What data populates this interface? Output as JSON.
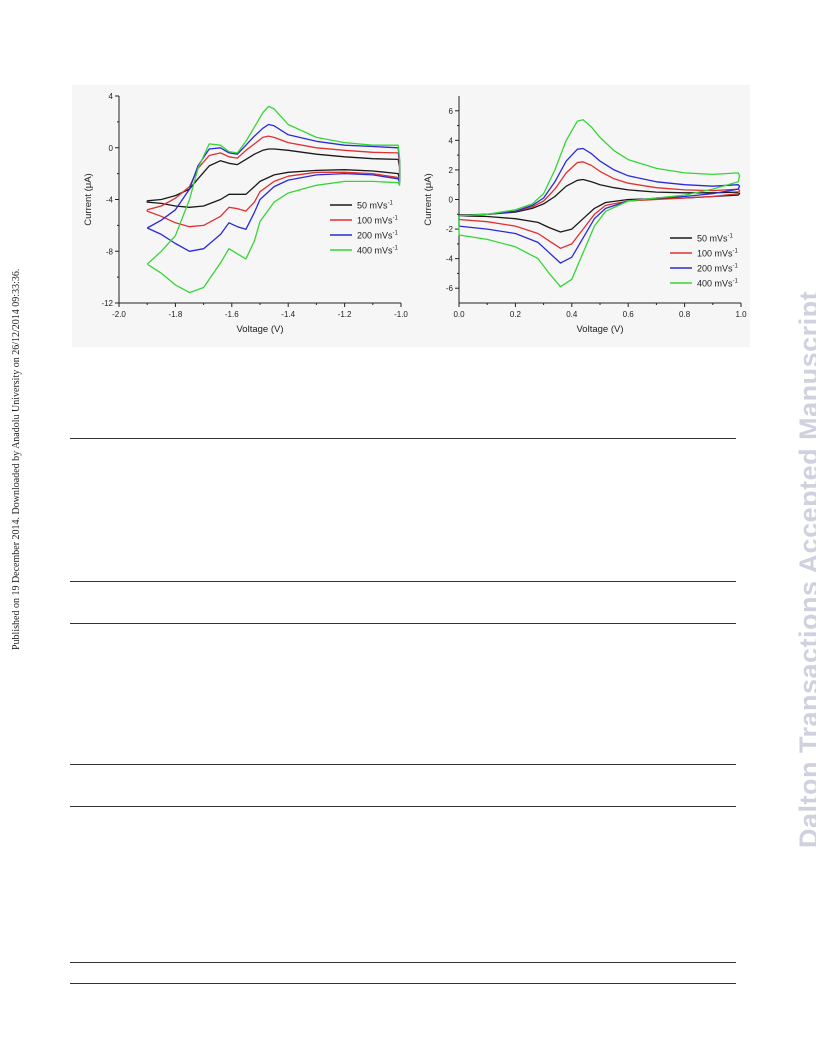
{
  "page": {
    "side_note": "Published on 19 December 2014. Downloaded by Anadolu University on 26/12/2014 09:33:36.",
    "watermark": "Dalton Transactions Accepted Manuscript"
  },
  "chart_data": [
    {
      "type": "line",
      "xlabel": "Voltage (V)",
      "ylabel": "Current (μA)",
      "xlim": [
        -2.0,
        -1.0
      ],
      "ylim": [
        -12,
        4
      ],
      "xticks": [
        -2.0,
        -1.8,
        -1.6,
        -1.4,
        -1.2,
        -1.0
      ],
      "xtick_labels": [
        "-2.0",
        "-1.8",
        "-1.6",
        "-1.4",
        "-1.2",
        "-1.0"
      ],
      "yticks": [
        -12,
        -8,
        -4,
        0,
        4
      ],
      "ytick_labels": [
        "-12",
        "-8",
        "-4",
        "0",
        "4"
      ],
      "legend_position": "bottom-right",
      "series": [
        {
          "name": "50 mVs",
          "sup": "-1",
          "color": "#1a1a1a",
          "x": [
            -1.9,
            -1.85,
            -1.8,
            -1.75,
            -1.72,
            -1.68,
            -1.64,
            -1.61,
            -1.58,
            -1.55,
            -1.52,
            -1.49,
            -1.47,
            -1.45,
            -1.4,
            -1.3,
            -1.2,
            -1.1,
            -1.01,
            -1.005,
            -1.005,
            -1.01,
            -1.1,
            -1.2,
            -1.3,
            -1.4,
            -1.45,
            -1.5,
            -1.52,
            -1.55,
            -1.58,
            -1.61,
            -1.64,
            -1.7,
            -1.75,
            -1.8,
            -1.85,
            -1.9
          ],
          "y": [
            -4.1,
            -4.0,
            -3.7,
            -3.2,
            -2.4,
            -1.4,
            -1.0,
            -1.2,
            -1.3,
            -0.9,
            -0.5,
            -0.2,
            -0.1,
            -0.1,
            -0.2,
            -0.5,
            -0.7,
            -0.85,
            -0.9,
            -1.5,
            -2.5,
            -2.0,
            -1.8,
            -1.7,
            -1.75,
            -1.9,
            -2.1,
            -2.6,
            -3.0,
            -3.6,
            -3.6,
            -3.6,
            -4.0,
            -4.5,
            -4.6,
            -4.5,
            -4.3,
            -4.2
          ]
        },
        {
          "name": "100 mVs",
          "sup": "-1",
          "color": "#e03030",
          "x": [
            -1.9,
            -1.85,
            -1.8,
            -1.75,
            -1.72,
            -1.68,
            -1.64,
            -1.61,
            -1.58,
            -1.55,
            -1.52,
            -1.49,
            -1.47,
            -1.45,
            -1.4,
            -1.3,
            -1.2,
            -1.1,
            -1.01,
            -1.005,
            -1.005,
            -1.01,
            -1.1,
            -1.2,
            -1.3,
            -1.4,
            -1.45,
            -1.5,
            -1.52,
            -1.55,
            -1.58,
            -1.61,
            -1.64,
            -1.7,
            -1.75,
            -1.8,
            -1.85,
            -1.9
          ],
          "y": [
            -4.8,
            -4.5,
            -3.9,
            -3.0,
            -1.6,
            -0.6,
            -0.4,
            -0.7,
            -0.8,
            -0.2,
            0.3,
            0.8,
            0.9,
            0.8,
            0.4,
            0.0,
            -0.2,
            -0.35,
            -0.4,
            -1.2,
            -2.6,
            -2.3,
            -2.0,
            -1.9,
            -1.9,
            -2.2,
            -2.6,
            -3.4,
            -4.2,
            -4.9,
            -4.7,
            -4.6,
            -5.3,
            -6.0,
            -6.1,
            -5.8,
            -5.3,
            -4.9
          ]
        },
        {
          "name": "200 mVs",
          "sup": "-1",
          "color": "#2a2ad8",
          "x": [
            -1.9,
            -1.85,
            -1.8,
            -1.75,
            -1.72,
            -1.68,
            -1.64,
            -1.61,
            -1.58,
            -1.55,
            -1.52,
            -1.49,
            -1.47,
            -1.45,
            -1.4,
            -1.3,
            -1.2,
            -1.1,
            -1.01,
            -1.005,
            -1.005,
            -1.01,
            -1.1,
            -1.2,
            -1.3,
            -1.4,
            -1.45,
            -1.5,
            -1.52,
            -1.55,
            -1.58,
            -1.61,
            -1.64,
            -1.7,
            -1.75,
            -1.8,
            -1.85,
            -1.9
          ],
          "y": [
            -6.2,
            -5.6,
            -4.8,
            -3.2,
            -1.4,
            -0.1,
            0.0,
            -0.4,
            -0.5,
            0.2,
            0.9,
            1.5,
            1.8,
            1.7,
            1.0,
            0.5,
            0.2,
            0.1,
            0.0,
            -1.0,
            -2.7,
            -2.4,
            -2.1,
            -2.0,
            -2.1,
            -2.5,
            -3.0,
            -4.0,
            -5.0,
            -6.3,
            -6.1,
            -5.8,
            -6.7,
            -7.8,
            -8.0,
            -7.4,
            -6.7,
            -6.2
          ]
        },
        {
          "name": "400 mVs",
          "sup": "-1",
          "color": "#35d635",
          "x": [
            -1.9,
            -1.85,
            -1.8,
            -1.75,
            -1.72,
            -1.68,
            -1.64,
            -1.61,
            -1.58,
            -1.55,
            -1.52,
            -1.49,
            -1.47,
            -1.45,
            -1.4,
            -1.3,
            -1.2,
            -1.1,
            -1.01,
            -1.005,
            -1.005,
            -1.01,
            -1.1,
            -1.2,
            -1.3,
            -1.4,
            -1.45,
            -1.5,
            -1.52,
            -1.55,
            -1.58,
            -1.61,
            -1.64,
            -1.7,
            -1.75,
            -1.8,
            -1.85,
            -1.9
          ],
          "y": [
            -9.0,
            -8.0,
            -6.8,
            -4.0,
            -1.6,
            0.3,
            0.2,
            -0.3,
            -0.4,
            0.5,
            1.6,
            2.7,
            3.2,
            3.0,
            1.8,
            0.8,
            0.4,
            0.2,
            0.2,
            -0.8,
            -2.9,
            -2.7,
            -2.6,
            -2.6,
            -2.9,
            -3.5,
            -4.2,
            -5.7,
            -7.2,
            -8.6,
            -8.2,
            -7.8,
            -8.9,
            -10.8,
            -11.2,
            -10.6,
            -9.7,
            -9.0
          ]
        }
      ]
    },
    {
      "type": "line",
      "xlabel": "Voltage (V)",
      "ylabel": "Current (μA)",
      "xlim": [
        0.0,
        1.0
      ],
      "ylim": [
        -7,
        7
      ],
      "xticks": [
        0.0,
        0.2,
        0.4,
        0.6,
        0.8,
        1.0
      ],
      "xtick_labels": [
        "0.0",
        "0.2",
        "0.4",
        "0.6",
        "0.8",
        "1.0"
      ],
      "yticks": [
        -6,
        -4,
        -2,
        0,
        2,
        4,
        6
      ],
      "ytick_labels": [
        "-6",
        "-4",
        "-2",
        "0",
        "2",
        "4",
        "6"
      ],
      "legend_position": "bottom-right",
      "series": [
        {
          "name": "50 mVs",
          "sup": "-1",
          "color": "#1a1a1a",
          "x": [
            0.0,
            0.1,
            0.2,
            0.26,
            0.3,
            0.34,
            0.38,
            0.42,
            0.44,
            0.47,
            0.5,
            0.55,
            0.6,
            0.7,
            0.8,
            0.9,
            0.99,
            0.995,
            0.99,
            0.9,
            0.8,
            0.7,
            0.6,
            0.52,
            0.48,
            0.44,
            0.4,
            0.36,
            0.32,
            0.28,
            0.2,
            0.1,
            0.0
          ],
          "y": [
            -1.05,
            -1.0,
            -0.85,
            -0.6,
            -0.3,
            0.2,
            0.9,
            1.3,
            1.35,
            1.2,
            1.0,
            0.8,
            0.65,
            0.5,
            0.45,
            0.45,
            0.5,
            0.4,
            0.3,
            0.2,
            0.1,
            0.05,
            0.0,
            -0.2,
            -0.6,
            -1.3,
            -2.0,
            -2.2,
            -1.9,
            -1.55,
            -1.3,
            -1.15,
            -1.1
          ]
        },
        {
          "name": "100 mVs",
          "sup": "-1",
          "color": "#e03030",
          "x": [
            0.0,
            0.1,
            0.2,
            0.26,
            0.3,
            0.34,
            0.38,
            0.42,
            0.44,
            0.47,
            0.5,
            0.55,
            0.6,
            0.7,
            0.8,
            0.9,
            0.99,
            0.995,
            0.99,
            0.9,
            0.8,
            0.7,
            0.6,
            0.52,
            0.48,
            0.44,
            0.4,
            0.36,
            0.32,
            0.28,
            0.2,
            0.1,
            0.0
          ],
          "y": [
            -1.1,
            -1.0,
            -0.8,
            -0.5,
            -0.1,
            0.7,
            1.8,
            2.5,
            2.55,
            2.3,
            1.9,
            1.4,
            1.1,
            0.8,
            0.65,
            0.6,
            0.7,
            0.6,
            0.4,
            0.2,
            0.1,
            0.0,
            -0.1,
            -0.4,
            -1.0,
            -2.0,
            -3.0,
            -3.3,
            -2.8,
            -2.3,
            -1.8,
            -1.5,
            -1.35
          ]
        },
        {
          "name": "200 mVs",
          "sup": "-1",
          "color": "#2a2ad8",
          "x": [
            0.0,
            0.1,
            0.2,
            0.26,
            0.3,
            0.34,
            0.38,
            0.42,
            0.44,
            0.47,
            0.5,
            0.55,
            0.6,
            0.7,
            0.8,
            0.9,
            0.99,
            0.995,
            0.99,
            0.9,
            0.8,
            0.7,
            0.6,
            0.52,
            0.48,
            0.44,
            0.4,
            0.36,
            0.32,
            0.28,
            0.2,
            0.1,
            0.0
          ],
          "y": [
            -1.1,
            -1.0,
            -0.8,
            -0.4,
            0.1,
            1.2,
            2.6,
            3.4,
            3.45,
            3.1,
            2.6,
            2.0,
            1.6,
            1.2,
            1.0,
            0.9,
            1.0,
            0.9,
            0.7,
            0.4,
            0.2,
            0.1,
            -0.1,
            -0.6,
            -1.3,
            -2.6,
            -3.9,
            -4.3,
            -3.6,
            -2.9,
            -2.3,
            -2.0,
            -1.8
          ]
        },
        {
          "name": "400 mVs",
          "sup": "-1",
          "color": "#35d635",
          "x": [
            0.0,
            0.1,
            0.2,
            0.26,
            0.3,
            0.34,
            0.38,
            0.42,
            0.44,
            0.47,
            0.5,
            0.55,
            0.6,
            0.7,
            0.8,
            0.9,
            0.99,
            0.995,
            0.99,
            0.9,
            0.8,
            0.7,
            0.6,
            0.52,
            0.48,
            0.44,
            0.4,
            0.36,
            0.32,
            0.28,
            0.2,
            0.1,
            0.0
          ],
          "y": [
            -1.1,
            -1.0,
            -0.7,
            -0.3,
            0.4,
            2.0,
            4.0,
            5.3,
            5.4,
            4.9,
            4.2,
            3.3,
            2.7,
            2.1,
            1.8,
            1.7,
            1.8,
            1.6,
            1.2,
            0.7,
            0.3,
            0.1,
            -0.1,
            -0.8,
            -1.8,
            -3.6,
            -5.4,
            -5.9,
            -5.0,
            -4.0,
            -3.2,
            -2.7,
            -2.4
          ]
        }
      ]
    }
  ]
}
